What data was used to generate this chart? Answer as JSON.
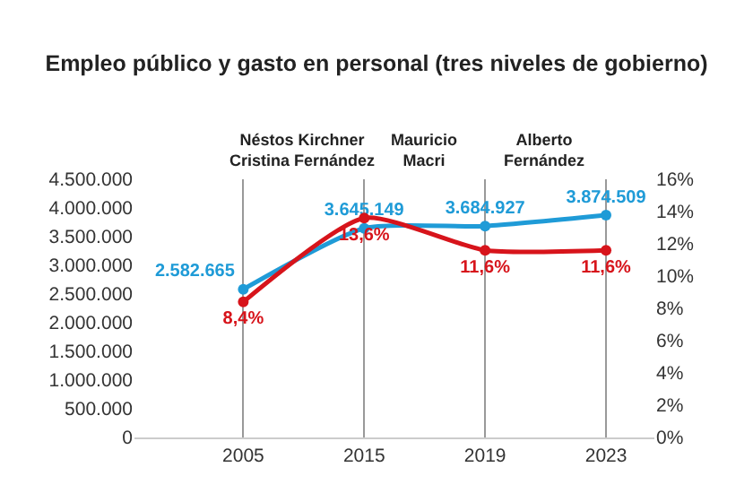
{
  "chart_data": {
    "type": "line",
    "title": "Empleo público y gasto en personal (tres niveles de gobierno)",
    "categories": [
      "2005",
      "2015",
      "2019",
      "2023"
    ],
    "series": [
      {
        "color": "#1f9bd7",
        "values": [
          2582665,
          3645149,
          3684927,
          3874509
        ],
        "value_labels": [
          "2.582.665",
          "3.645.149",
          "3.684.927",
          "3.874.509"
        ]
      },
      {
        "color": "#d7141b",
        "axis": "y2",
        "values": [
          8.4,
          13.6,
          11.6,
          11.6
        ],
        "value_labels": [
          "8,4%",
          "13,6%",
          "11,6%",
          "11,6%"
        ]
      }
    ],
    "ylim": [
      0,
      4500000
    ],
    "yticks": [
      0,
      {
        "value": 500000,
        "label": "500.000"
      },
      {
        "value": 1000000,
        "label": "1.000.000"
      },
      {
        "value": 1500000,
        "label": "1.500.000"
      },
      {
        "value": 2000000,
        "label": "2.000.000"
      },
      {
        "value": 2500000,
        "label": "2.500.000"
      },
      {
        "value": 3000000,
        "label": "3.000.000"
      },
      {
        "value": 3500000,
        "label": "3.500.000"
      },
      {
        "value": 4000000,
        "label": "4.000.000"
      },
      {
        "value": 4500000,
        "label": "4.500.000"
      }
    ],
    "y2lim": [
      0,
      16
    ],
    "y2ticks": [
      {
        "value": 0,
        "label": "0%"
      },
      {
        "value": 2,
        "label": "2%"
      },
      {
        "value": 4,
        "label": "4%"
      },
      {
        "value": 6,
        "label": "6%"
      },
      {
        "value": 8,
        "label": "8%"
      },
      {
        "value": 10,
        "label": "10%"
      },
      {
        "value": 12,
        "label": "12%"
      },
      {
        "value": 14,
        "label": "14%"
      },
      {
        "value": 16,
        "label": "16%"
      }
    ],
    "annotations": [
      "Néstos Kirchner\nCristina Fernández",
      "Mauricio\nMacri",
      "Alberto\nFernández"
    ],
    "grid": "x",
    "marker": "circle",
    "line_style": "solid"
  }
}
